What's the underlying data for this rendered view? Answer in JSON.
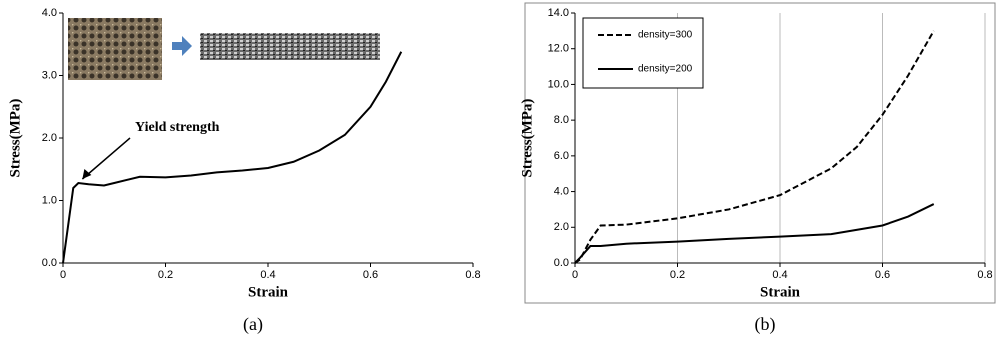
{
  "chart_data": [
    {
      "type": "line",
      "panel_label": "(a)",
      "xlabel": "Strain",
      "ylabel": "Stress(MPa)",
      "annotation": "Yield strength",
      "xlim": [
        0,
        0.8
      ],
      "xticks": [
        0,
        0.2,
        0.4,
        0.6,
        0.8
      ],
      "ylim": [
        0,
        4
      ],
      "yticks": [
        {
          "value": 0,
          "label": "0.0"
        },
        {
          "value": 1,
          "label": "1.0"
        },
        {
          "value": 2,
          "label": "2.0"
        },
        {
          "value": 3,
          "label": "3.0"
        },
        {
          "value": 4,
          "label": "4.0"
        }
      ],
      "grid": false,
      "frame": false,
      "series": [
        {
          "color": "#000000",
          "line_style": "solid",
          "x": [
            0,
            0.01,
            0.02,
            0.03,
            0.05,
            0.08,
            0.1,
            0.15,
            0.2,
            0.25,
            0.3,
            0.35,
            0.4,
            0.45,
            0.5,
            0.55,
            0.6,
            0.63,
            0.66
          ],
          "values": [
            0,
            0.6,
            1.2,
            1.28,
            1.26,
            1.24,
            1.28,
            1.38,
            1.37,
            1.4,
            1.45,
            1.48,
            1.52,
            1.62,
            1.8,
            2.05,
            2.5,
            2.9,
            3.38
          ]
        }
      ]
    },
    {
      "type": "line",
      "panel_label": "(b)",
      "xlabel": "Strain",
      "ylabel": "Stress(MPa)",
      "xlim": [
        0,
        0.8
      ],
      "xticks": [
        0,
        0.2,
        0.4,
        0.6,
        0.8
      ],
      "ylim": [
        0,
        14
      ],
      "yticks": [
        {
          "value": 0,
          "label": "0.0"
        },
        {
          "value": 2,
          "label": "2.0"
        },
        {
          "value": 4,
          "label": "4.0"
        },
        {
          "value": 6,
          "label": "6.0"
        },
        {
          "value": 8,
          "label": "8.0"
        },
        {
          "value": 10,
          "label": "10.0"
        },
        {
          "value": 12,
          "label": "12.0"
        },
        {
          "value": 14,
          "label": "14.0"
        }
      ],
      "grid": true,
      "frame": true,
      "legend": "top-left",
      "series": [
        {
          "name": "density=300",
          "color": "#000000",
          "line_style": "dashed",
          "x": [
            0,
            0.01,
            0.03,
            0.05,
            0.1,
            0.2,
            0.3,
            0.4,
            0.5,
            0.55,
            0.6,
            0.65,
            0.68,
            0.7
          ],
          "values": [
            0,
            0.2,
            1.3,
            2.1,
            2.15,
            2.5,
            3.0,
            3.8,
            5.3,
            6.5,
            8.3,
            10.5,
            12,
            13
          ]
        },
        {
          "name": "density=200",
          "color": "#000000",
          "line_style": "solid",
          "x": [
            0,
            0.01,
            0.03,
            0.05,
            0.1,
            0.2,
            0.3,
            0.4,
            0.5,
            0.6,
            0.65,
            0.7
          ],
          "values": [
            0,
            0.3,
            0.95,
            0.95,
            1.08,
            1.2,
            1.35,
            1.48,
            1.62,
            2.1,
            2.6,
            3.3
          ]
        }
      ]
    }
  ]
}
